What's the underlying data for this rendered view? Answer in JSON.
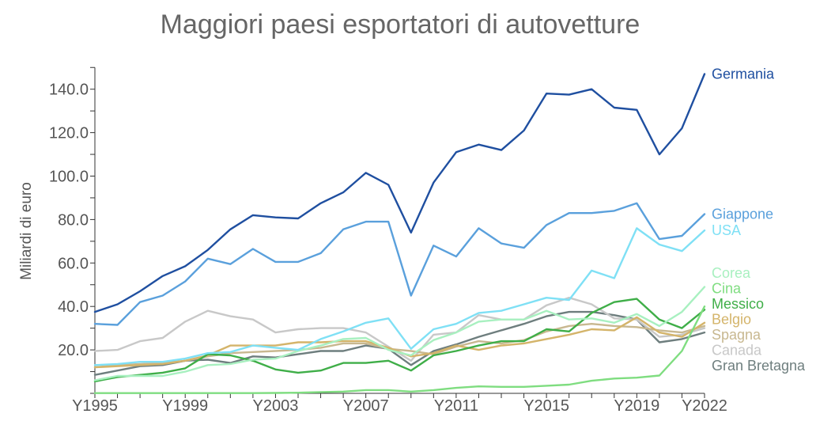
{
  "chart_data": {
    "type": "line",
    "title": "Maggiori paesi esportatori di autovetture",
    "ylabel": "Miliardi di euro",
    "xlabel": "",
    "ylim": [
      0,
      150
    ],
    "yticks": [
      "20.0",
      "40.0",
      "60.0",
      "80.0",
      "100.0",
      "120.0",
      "140.0"
    ],
    "ytick_values": [
      20,
      40,
      60,
      80,
      100,
      120,
      140
    ],
    "xticks": [
      "Y1995",
      "Y1999",
      "Y2003",
      "Y2007",
      "Y2011",
      "Y2015",
      "Y2019",
      "Y2022"
    ],
    "xtick_years": [
      1995,
      1999,
      2003,
      2007,
      2011,
      2015,
      2019,
      2022
    ],
    "x": [
      1995,
      1996,
      1997,
      1998,
      1999,
      2000,
      2001,
      2002,
      2003,
      2004,
      2005,
      2006,
      2007,
      2008,
      2009,
      2010,
      2011,
      2012,
      2013,
      2014,
      2015,
      2016,
      2017,
      2018,
      2019,
      2020,
      2021,
      2022
    ],
    "legend": "inline-right",
    "grid": false,
    "series": [
      {
        "name": "Germania",
        "color": "#1f4fa0",
        "values": [
          37.5,
          41,
          47,
          54,
          58.5,
          66,
          75.5,
          82,
          81,
          80.5,
          87.5,
          92.5,
          101.5,
          96,
          74,
          97,
          111,
          114.5,
          112,
          121,
          138,
          137.5,
          140,
          131.5,
          130.5,
          110,
          122,
          147
        ]
      },
      {
        "name": "Giappone",
        "color": "#5aa0dc",
        "values": [
          32,
          31.5,
          42,
          45,
          51.5,
          62,
          59.5,
          66.5,
          60.5,
          60.5,
          64.5,
          75.5,
          79,
          79,
          45,
          68,
          63,
          76,
          69,
          67,
          77.5,
          83,
          83,
          84,
          87.5,
          71,
          72.5,
          82.5
        ]
      },
      {
        "name": "USA",
        "color": "#7fe0f5",
        "values": [
          13,
          13.5,
          14.5,
          14.5,
          16,
          18.5,
          19,
          22,
          21,
          20,
          25,
          28.5,
          32.5,
          34.5,
          20.5,
          29.5,
          32,
          37,
          38,
          41,
          44,
          43,
          56.5,
          53,
          76,
          68.5,
          65.5,
          75
        ]
      },
      {
        "name": "Corea",
        "color": "#a8f0c0",
        "values": [
          6,
          8,
          8,
          8,
          10,
          13,
          13.5,
          15.5,
          16,
          19.5,
          22,
          25,
          25.5,
          20,
          17.5,
          24.5,
          28,
          33,
          34,
          34,
          38,
          34,
          34.5,
          32.5,
          36.5,
          31,
          37.5,
          49
        ]
      },
      {
        "name": "Cina",
        "color": "#7fdd80",
        "values": [
          0.1,
          0.1,
          0.1,
          0.1,
          0.1,
          0.1,
          0.1,
          0.1,
          0.2,
          0.3,
          0.6,
          0.8,
          1.5,
          1.5,
          0.8,
          1.5,
          2.5,
          3.2,
          3,
          3,
          3.5,
          4,
          5.8,
          6.8,
          7.2,
          8.2,
          19.5,
          40
        ]
      },
      {
        "name": "Messico",
        "color": "#3fae48",
        "values": [
          5.5,
          7.5,
          8.5,
          9.5,
          11.5,
          18,
          17.5,
          15,
          11,
          9.5,
          10.5,
          14,
          14,
          15,
          10.5,
          17.5,
          19.5,
          22,
          24,
          24,
          29.5,
          28.5,
          37,
          42,
          43.5,
          34,
          30,
          38.5
        ]
      },
      {
        "name": "Belgio",
        "color": "#d4b46a",
        "values": [
          12,
          12.5,
          13,
          13.5,
          15,
          17.5,
          22,
          22,
          22,
          23.5,
          23.5,
          24,
          24,
          21,
          17,
          18.5,
          22,
          20,
          22,
          23,
          25,
          27,
          29.5,
          29,
          35,
          28,
          26,
          32.5
        ]
      },
      {
        "name": "Spagna",
        "color": "#c8b890",
        "values": [
          12,
          13,
          13.5,
          14,
          15,
          17,
          18.5,
          19,
          19.5,
          20,
          21,
          23,
          23,
          20.5,
          19.5,
          18,
          21.5,
          24,
          23,
          24.5,
          28.5,
          31,
          32,
          31,
          30.5,
          29,
          28,
          31
        ]
      },
      {
        "name": "Canada",
        "color": "#c8c8c8",
        "values": [
          19.5,
          20,
          24,
          25.5,
          33,
          38,
          35.5,
          34,
          28,
          29.5,
          30,
          30,
          28,
          21.5,
          15,
          27,
          28,
          36,
          34,
          34,
          40.5,
          44,
          41,
          34.5,
          34,
          26,
          27,
          30
        ]
      },
      {
        "name": "Gran Bretagna",
        "color": "#6e7e7e",
        "values": [
          8.5,
          10.5,
          12.5,
          13,
          15,
          15.5,
          14,
          17,
          16.5,
          18,
          19.5,
          19.5,
          22,
          20.5,
          13,
          19.5,
          22.5,
          26,
          29,
          32,
          35.5,
          37.5,
          37.5,
          36,
          34,
          23.5,
          25,
          28
        ]
      }
    ],
    "label_colors": {
      "Germania": "#1f4fa0",
      "Giappone": "#5aa0dc",
      "USA": "#7fe0f5",
      "Corea": "#a8f0c0",
      "Cina": "#7fdd80",
      "Messico": "#3fae48",
      "Belgio": "#d4b46a",
      "Spagna": "#c8b890",
      "Canada": "#c8c8c8",
      "Gran Bretagna": "#6e7e7e"
    }
  }
}
